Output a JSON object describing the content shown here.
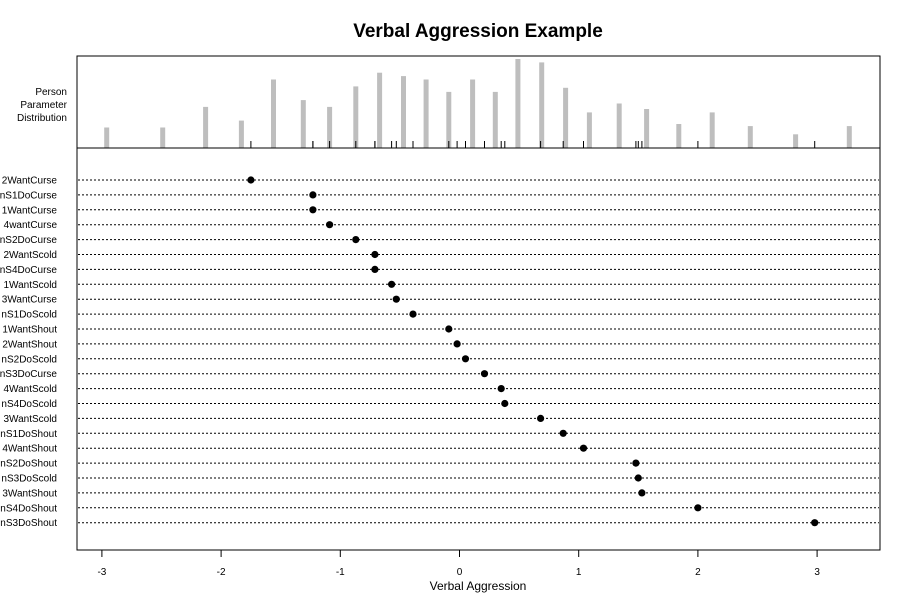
{
  "chart_data": [
    {
      "type": "bar",
      "panel": "person distribution",
      "title": "Verbal Aggression Example",
      "ylabel_lines": [
        "Person",
        "Parameter",
        "Distribution"
      ],
      "x": [
        -2.96,
        -2.49,
        -2.13,
        -1.83,
        -1.56,
        -1.31,
        -1.09,
        -0.87,
        -0.67,
        -0.47,
        -0.28,
        -0.09,
        0.11,
        0.3,
        0.49,
        0.69,
        0.89,
        1.09,
        1.34,
        1.57,
        1.84,
        2.12,
        2.44,
        2.82,
        3.27
      ],
      "values": [
        3,
        3,
        6,
        4,
        10,
        7,
        6,
        9,
        11,
        10.5,
        10,
        8.2,
        10,
        8.2,
        13,
        12.5,
        8.8,
        5.2,
        6.5,
        5.7,
        3.5,
        5.2,
        3.2,
        2,
        3.2
      ],
      "color": "#bebebe"
    },
    {
      "type": "scatter",
      "panel": "item difficulties",
      "xlabel": "Verbal Aggression",
      "xticks": [
        -3,
        -2,
        -1,
        0,
        1,
        2,
        3
      ],
      "xlim": [
        -3.2,
        3.55
      ],
      "items": [
        {
          "label": "2WantCurse",
          "value": -1.75
        },
        {
          "label": "nS1DoCurse",
          "value": -1.23
        },
        {
          "label": "1WantCurse",
          "value": -1.23
        },
        {
          "label": "4wantCurse",
          "value": -1.09
        },
        {
          "label": "nS2DoCurse",
          "value": -0.87
        },
        {
          "label": "2WantScold",
          "value": -0.71
        },
        {
          "label": "nS4DoCurse",
          "value": -0.71
        },
        {
          "label": "1WantScold",
          "value": -0.57
        },
        {
          "label": "3WantCurse",
          "value": -0.53
        },
        {
          "label": "nS1DoScold",
          "value": -0.39
        },
        {
          "label": "1WantShout",
          "value": -0.09
        },
        {
          "label": "2WantShout",
          "value": -0.02
        },
        {
          "label": "nS2DoScold",
          "value": 0.05
        },
        {
          "label": "nS3DoCurse",
          "value": 0.21
        },
        {
          "label": "4WantScold",
          "value": 0.35
        },
        {
          "label": "nS4DoScold",
          "value": 0.38
        },
        {
          "label": "3WantScold",
          "value": 0.68
        },
        {
          "label": "nS1DoShout",
          "value": 0.87
        },
        {
          "label": "4WantShout",
          "value": 1.04
        },
        {
          "label": "nS2DoShout",
          "value": 1.48
        },
        {
          "label": "nS3DoScold",
          "value": 1.5
        },
        {
          "label": "3WantShout",
          "value": 1.53
        },
        {
          "label": "nS4DoShout",
          "value": 2.0
        },
        {
          "label": "nS3DoShout",
          "value": 2.98
        }
      ],
      "grid": "dotted horizontal lines per item"
    }
  ]
}
